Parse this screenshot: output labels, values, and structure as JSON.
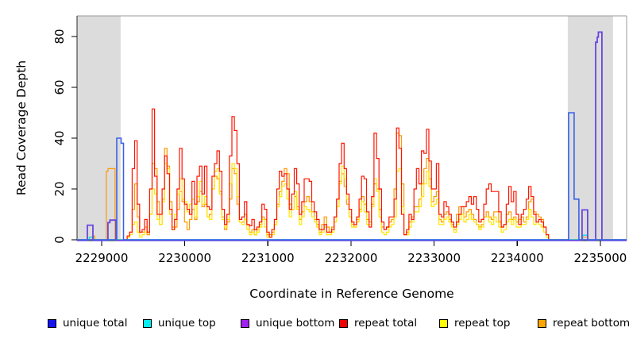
{
  "chart_data": {
    "type": "line",
    "title": "",
    "xlabel": "Coordinate in Reference Genome",
    "ylabel": "Read Coverage Depth",
    "xlim": [
      2228704,
      2235316
    ],
    "ylim": [
      0,
      88
    ],
    "grid": false,
    "x_ticks": [
      2229000,
      2230000,
      2231000,
      2232000,
      2233000,
      2234000,
      2235000
    ],
    "x_tick_labels": [
      "2229000",
      "2230000",
      "2231000",
      "2232000",
      "2233000",
      "2234000",
      "2235000"
    ],
    "y_ticks": [
      0,
      20,
      40,
      60,
      80
    ],
    "y_tick_labels": [
      "0",
      "20",
      "40",
      "60",
      "80"
    ],
    "box_color": "#999999",
    "axis_color": "#000000",
    "region_fill": "#DCDCDC",
    "highlight_regions": [
      {
        "x0": 2228704,
        "x1": 2229229
      },
      {
        "x0": 2234608,
        "x1": 2235153
      }
    ],
    "legend": [
      {
        "label": "unique total",
        "color": "#1414EE"
      },
      {
        "label": "unique top",
        "color": "#00EEEE"
      },
      {
        "label": "unique bottom",
        "color": "#A020F0"
      },
      {
        "label": "repeat total",
        "color": "#EE0000"
      },
      {
        "label": "repeat top",
        "color": "#FFFF00"
      },
      {
        "label": "repeat bottom",
        "color": "#FFA500"
      }
    ],
    "series": [
      {
        "name": "repeat bottom",
        "color": "#FF9800",
        "width": 1.2,
        "segments": [
          {
            "points": [
              [
                2228888,
                1.5
              ],
              [
                2228918,
                0
              ],
              [
                2229057,
                27
              ],
              [
                2229077,
                28
              ],
              [
                2229162,
                0
              ]
            ]
          },
          {
            "x0": 2229277,
            "dx": 30,
            "values": [
              0,
              1,
              3,
              12,
              22,
              9,
              3,
              3,
              5,
              2,
              10,
              30,
              28,
              15,
              6,
              16,
              36,
              29,
              15,
              5,
              5,
              12,
              19,
              15,
              7,
              4,
              8,
              12,
              8,
              15,
              19,
              13,
              14,
              9,
              10,
              20,
              25,
              24,
              19,
              9,
              4,
              7,
              16,
              28,
              26,
              14,
              7,
              7,
              10,
              6,
              3,
              4,
              2,
              4,
              6,
              9,
              8,
              2,
              2,
              3,
              6,
              14,
              19,
              23,
              28,
              26,
              14,
              12,
              17,
              13,
              8,
              11,
              15,
              17,
              15,
              11,
              8,
              6,
              3,
              6,
              9,
              5,
              3,
              5,
              9,
              16,
              23,
              26,
              21,
              14,
              9,
              6,
              5,
              8,
              12,
              17,
              14,
              8,
              7,
              14,
              22,
              20,
              12,
              5,
              4,
              5,
              7,
              8,
              20,
              42,
              41,
              22,
              2,
              3,
              7,
              9,
              13,
              13,
              16,
              22,
              28,
              32,
              24,
              15,
              17,
              19,
              8,
              7,
              10,
              11,
              8,
              6,
              4,
              10,
              13,
              13,
              9,
              11,
              12,
              10,
              8,
              6,
              5,
              6,
              9,
              11,
              9,
              8,
              11,
              11,
              7,
              5,
              6,
              10,
              11,
              8,
              9,
              7,
              8,
              9,
              7,
              9,
              15,
              16,
              11,
              10,
              9,
              8,
              5,
              2,
              0
            ]
          },
          {
            "points": [
              [
                2234780,
                1
              ],
              [
                2234850,
                0
              ]
            ]
          }
        ]
      },
      {
        "name": "repeat top",
        "color": "#FFE600",
        "width": 1.2,
        "segments": [
          {
            "x0": 2229277,
            "dx": 30,
            "values": [
              0,
              1,
              2,
              6,
              7,
              3,
              1,
              2,
              3,
              3,
              10,
              20,
              18,
              8,
              6,
              15,
              30,
              28,
              10,
              4,
              10,
              18,
              24,
              16,
              15,
              11,
              14,
              16,
              9,
              17,
              23,
              14,
              17,
              9,
              8,
              20,
              27,
              28,
              18,
              8,
              5,
              8,
              22,
              30,
              28,
              17,
              7,
              6,
              8,
              4,
              2,
              3,
              2,
              3,
              5,
              8,
              5,
              1,
              1,
              2,
              6,
              13,
              17,
              21,
              22,
              16,
              9,
              12,
              19,
              12,
              6,
              9,
              13,
              12,
              11,
              9,
              7,
              5,
              2,
              3,
              5,
              2,
              2,
              3,
              7,
              13,
              22,
              29,
              24,
              16,
              9,
              5,
              5,
              7,
              11,
              15,
              11,
              6,
              6,
              13,
              24,
              19,
              9,
              3,
              2,
              3,
              5,
              6,
              9,
              27,
              28,
              13,
              2,
              2,
              5,
              7,
              11,
              11,
              13,
              17,
              22,
              27,
              21,
              13,
              14,
              16,
              6,
              6,
              8,
              9,
              7,
              5,
              3,
              6,
              8,
              10,
              7,
              8,
              10,
              8,
              7,
              6,
              4,
              5,
              9,
              9,
              7,
              6,
              9,
              7,
              5,
              3,
              4,
              7,
              8,
              6,
              8,
              5,
              5,
              6,
              6,
              8,
              12,
              9,
              6,
              7,
              6,
              5,
              3,
              1,
              0
            ]
          }
        ]
      },
      {
        "name": "repeat total",
        "color": "#FF1400",
        "width": 1.2,
        "segments": [
          {
            "x0": 2229277,
            "dx": 30,
            "values": [
              0,
              1.5,
              3,
              28,
              39,
              14,
              3,
              4,
              8,
              3,
              20,
              51.5,
              25,
              10,
              10,
              20,
              33,
              26,
              12,
              4,
              8,
              20,
              36,
              24,
              14,
              12,
              10,
              23,
              14,
              25,
              29,
              18,
              29,
              13,
              12,
              25,
              30,
              35,
              27,
              12,
              6,
              10,
              33,
              48.5,
              43,
              30,
              8,
              9,
              15,
              6,
              5.5,
              8,
              4,
              5,
              7,
              14,
              12,
              3,
              1,
              4,
              8,
              20,
              27,
              25,
              26,
              20,
              12,
              18,
              28,
              22,
              10,
              15,
              24,
              24,
              23,
              15,
              11,
              8,
              4,
              4,
              6,
              3,
              3,
              4,
              9,
              16,
              30,
              38,
              28,
              18,
              12,
              7,
              6,
              9,
              16,
              25,
              24,
              11,
              5,
              17,
              42,
              32,
              20,
              7,
              4,
              5,
              9,
              9,
              16,
              44,
              36,
              10,
              2,
              4,
              10,
              8,
              20,
              28,
              22,
              35,
              34,
              43.5,
              31,
              20,
              20,
              30,
              10,
              9,
              15,
              13,
              10,
              7,
              5,
              7,
              10,
              13,
              13,
              15,
              17,
              14,
              17,
              12,
              7,
              8,
              14,
              20,
              22,
              19,
              19,
              19,
              11,
              5,
              6,
              14,
              21,
              15,
              19,
              10,
              6,
              10,
              12,
              16,
              21,
              17,
              10,
              7,
              8,
              7,
              5,
              2,
              0
            ]
          }
        ]
      },
      {
        "name": "unique top",
        "color": "#00E0EA",
        "width": 1.4,
        "segments": [
          {
            "points": [
              [
                2228852,
                1
              ],
              [
                2228900,
                0
              ],
              [
                2234787,
                1.8
              ],
              [
                2234845,
                0
              ]
            ]
          }
        ]
      },
      {
        "name": "unique bottom",
        "color": "#6A45DF",
        "width": 1.8,
        "segments": [
          {
            "points": [
              [
                2228828,
                6
              ],
              [
                2228895,
                0
              ],
              [
                2229076,
                7
              ],
              [
                2229100,
                8
              ],
              [
                2229172,
                0
              ],
              [
                2234780,
                12
              ],
              [
                2234847,
                0
              ],
              [
                2234943,
                78
              ],
              [
                2234962,
                80
              ],
              [
                2234976,
                82
              ],
              [
                2235019,
                0
              ]
            ]
          }
        ]
      },
      {
        "name": "unique total",
        "color": "#3A62E8",
        "width": 1.6,
        "segments": [
          {
            "points": [
              [
                2229182,
                40
              ],
              [
                2229234,
                38
              ],
              [
                2229263,
                0
              ],
              [
                2234618,
                50
              ],
              [
                2234684,
                16
              ],
              [
                2234742,
                0
              ]
            ]
          }
        ]
      }
    ]
  }
}
